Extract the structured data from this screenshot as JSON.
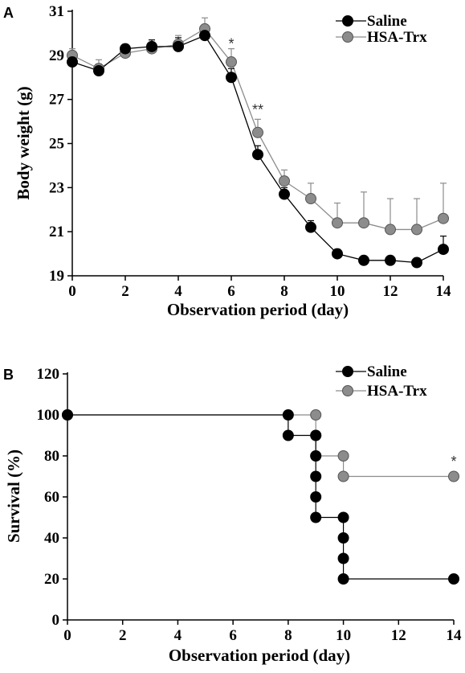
{
  "chart_data": [
    {
      "panel_label": "A",
      "type": "line",
      "xlabel": "Observation period (day)",
      "ylabel": "Body weight (g)",
      "xlim": [
        0,
        14
      ],
      "ylim": [
        19,
        31
      ],
      "xticks": [
        0,
        2,
        4,
        6,
        8,
        10,
        12,
        14
      ],
      "yticks": [
        19,
        21,
        23,
        25,
        27,
        29,
        31
      ],
      "legend": "top-right",
      "grid": false,
      "x": [
        0,
        1,
        2,
        3,
        4,
        5,
        6,
        7,
        8,
        9,
        10,
        11,
        12,
        13,
        14
      ],
      "series": [
        {
          "name": "Saline",
          "color": "#000000",
          "values": [
            28.7,
            28.3,
            29.3,
            29.4,
            29.4,
            29.9,
            28.0,
            24.5,
            22.7,
            21.2,
            20.0,
            19.7,
            19.7,
            19.6,
            20.2
          ],
          "error": [
            0.3,
            0.3,
            0.2,
            0.3,
            0.4,
            0.4,
            0.4,
            0.4,
            0.3,
            0.3,
            0.2,
            0.1,
            0.1,
            0.1,
            0.6
          ]
        },
        {
          "name": "HSA-Trx",
          "color": "#8c8c8c",
          "values": [
            29.0,
            28.4,
            29.1,
            29.3,
            29.5,
            30.2,
            28.7,
            25.5,
            23.3,
            22.5,
            21.4,
            21.4,
            21.1,
            21.1,
            21.6
          ],
          "error": [
            0.3,
            0.4,
            0.2,
            0.3,
            0.4,
            0.5,
            0.6,
            0.6,
            0.5,
            0.7,
            0.9,
            1.4,
            1.4,
            1.4,
            1.6
          ]
        }
      ],
      "annotations": [
        {
          "x": 6,
          "y": 29.6,
          "text": "*"
        },
        {
          "x": 7,
          "y": 26.6,
          "text": "**"
        }
      ]
    },
    {
      "panel_label": "B",
      "type": "line",
      "step": true,
      "xlabel": "Observation period (day)",
      "ylabel": "Survival (%)",
      "xlim": [
        0,
        14
      ],
      "ylim": [
        0,
        120
      ],
      "xticks": [
        0,
        2,
        4,
        6,
        8,
        10,
        12,
        14
      ],
      "yticks": [
        0,
        20,
        40,
        60,
        80,
        100,
        120
      ],
      "legend": "top-right",
      "grid": false,
      "series": [
        {
          "name": "Saline",
          "color": "#000000",
          "points": [
            [
              0,
              100
            ],
            [
              8,
              100
            ],
            [
              8,
              90
            ],
            [
              9,
              90
            ],
            [
              9,
              80
            ],
            [
              9,
              70
            ],
            [
              9,
              60
            ],
            [
              9,
              50
            ],
            [
              10,
              50
            ],
            [
              10,
              40
            ],
            [
              10,
              30
            ],
            [
              10,
              20
            ],
            [
              14,
              20
            ]
          ]
        },
        {
          "name": "HSA-Trx",
          "color": "#8c8c8c",
          "points": [
            [
              0,
              100
            ],
            [
              9,
              100
            ],
            [
              9,
              90
            ],
            [
              9,
              80
            ],
            [
              10,
              80
            ],
            [
              10,
              70
            ],
            [
              14,
              70
            ]
          ]
        }
      ],
      "annotations": [
        {
          "x": 14,
          "y": 78,
          "text": "*"
        }
      ]
    }
  ]
}
